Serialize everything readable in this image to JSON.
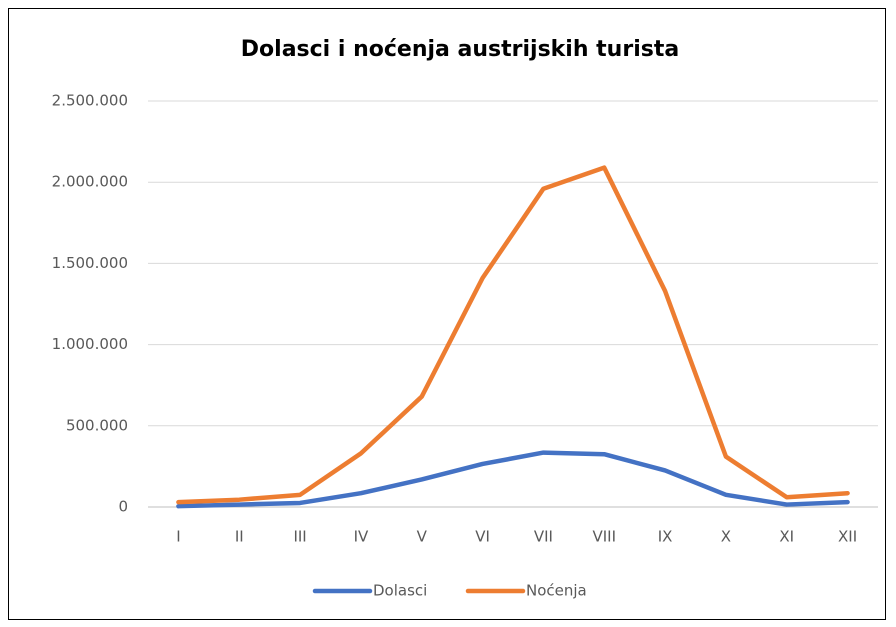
{
  "chart_data": {
    "type": "line",
    "title": "Dolasci i noćenja austrijskih turista",
    "categories": [
      "I",
      "II",
      "III",
      "IV",
      "V",
      "VI",
      "VII",
      "VIII",
      "IX",
      "X",
      "XI",
      "XII"
    ],
    "series": [
      {
        "name": "Dolasci",
        "color": "#4472c4",
        "values": [
          5000,
          15000,
          25000,
          85000,
          170000,
          265000,
          335000,
          325000,
          225000,
          75000,
          15000,
          30000
        ]
      },
      {
        "name": "Noćenja",
        "color": "#ed7d31",
        "values": [
          30000,
          45000,
          75000,
          330000,
          680000,
          1410000,
          1960000,
          2090000,
          1330000,
          310000,
          60000,
          85000
        ]
      }
    ],
    "ylim": [
      0,
      2500000
    ],
    "yticks": [
      0,
      {
        "value": 500000,
        "label": "500.000"
      },
      {
        "value": 1000000,
        "label": "1.000.000"
      },
      {
        "value": 1500000,
        "label": "1.500.000"
      },
      {
        "value": 2000000,
        "label": "2.000.000"
      },
      {
        "value": 2500000,
        "label": "2.500.000"
      }
    ],
    "grid": true,
    "legend": "bottom"
  }
}
